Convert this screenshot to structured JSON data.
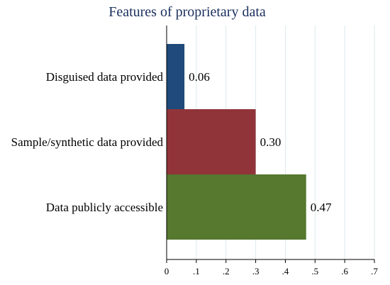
{
  "chart_data": {
    "type": "bar",
    "orientation": "horizontal",
    "title": "Features of proprietary data",
    "categories": [
      "Disguised data provided",
      "Sample/synthetic data provided",
      "Data publicly accessible"
    ],
    "values": [
      0.06,
      0.3,
      0.47
    ],
    "value_labels": [
      "0.06",
      "0.30",
      "0.47"
    ],
    "bar_colors": [
      "#1f4a7a",
      "#903439",
      "#56782f"
    ],
    "xlim": [
      0,
      0.7
    ],
    "xticks": [
      0,
      0.1,
      0.2,
      0.3,
      0.4,
      0.5,
      0.6,
      0.7
    ],
    "xtick_labels": [
      "0",
      ".1",
      ".2",
      ".3",
      ".4",
      ".5",
      ".6",
      ".7"
    ],
    "grid": true,
    "xlabel": "",
    "ylabel": ""
  }
}
